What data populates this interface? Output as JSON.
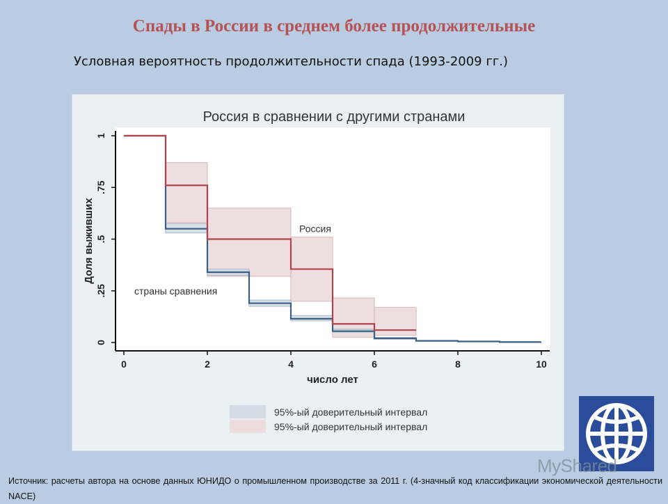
{
  "slide": {
    "title": "Спады в России в среднем более продолжительные",
    "subtitle": "Условная вероятность продолжительности спада (1993-2009 гг.)",
    "source": "Источник: расчеты автора на основе данных ЮНИДО о промышленном производстве за 2011 г. (4-значный код классификации экономической деятельности NACE)",
    "watermark": "MyShared",
    "logo_icon": "globe-icon",
    "colors": {
      "background": "#b9cce2",
      "title": "#b55256",
      "logo": "#2b4c9b"
    }
  },
  "chart_data": {
    "type": "line",
    "subtype": "step (Kaplan-Meier survival)",
    "title": "Россия в сравнении с другими странами",
    "xlabel": "число лет",
    "ylabel": "Доля выживших",
    "xlim": [
      0,
      10
    ],
    "ylim": [
      0,
      1
    ],
    "xticks": [
      0,
      2,
      4,
      6,
      8,
      10
    ],
    "yticks": [
      {
        "v": 0,
        "label": "0"
      },
      {
        "v": 0.25,
        "label": ".25"
      },
      {
        "v": 0.5,
        "label": ".5"
      },
      {
        "v": 0.75,
        "label": ".75"
      },
      {
        "v": 1,
        "label": "1"
      }
    ],
    "grid": false,
    "series": [
      {
        "name": "Россия",
        "color": "#b0434b",
        "ci_color": "#ecdcdd",
        "ci_edge": "#d9b9bc",
        "steps": [
          {
            "x0": 0,
            "x1": 1,
            "y": 1.0
          },
          {
            "x0": 1,
            "x1": 2,
            "y": 0.76,
            "lo": 0.58,
            "hi": 0.87
          },
          {
            "x0": 2,
            "x1": 4,
            "y": 0.5,
            "lo": 0.32,
            "hi": 0.65
          },
          {
            "x0": 4,
            "x1": 5,
            "y": 0.355,
            "lo": 0.2,
            "hi": 0.51
          },
          {
            "x0": 5,
            "x1": 6,
            "y": 0.09,
            "lo": 0.025,
            "hi": 0.215
          },
          {
            "x0": 6,
            "x1": 7,
            "y": 0.06,
            "lo": 0.035,
            "hi": 0.17
          }
        ],
        "label": {
          "text": "Россия",
          "x": 4.2,
          "y": 0.55
        }
      },
      {
        "name": "страны сравнения",
        "color": "#3a5f86",
        "ci_color": "#d4dde6",
        "ci_edge": "#a9b9c9",
        "steps": [
          {
            "x0": 0,
            "x1": 1,
            "y": 1.0
          },
          {
            "x0": 1,
            "x1": 2,
            "y": 0.55,
            "lo": 0.53,
            "hi": 0.575
          },
          {
            "x0": 2,
            "x1": 3,
            "y": 0.34,
            "lo": 0.325,
            "hi": 0.355
          },
          {
            "x0": 3,
            "x1": 4,
            "y": 0.19,
            "lo": 0.175,
            "hi": 0.205
          },
          {
            "x0": 4,
            "x1": 5,
            "y": 0.115,
            "lo": 0.105,
            "hi": 0.13
          },
          {
            "x0": 5,
            "x1": 6,
            "y": 0.055,
            "lo": 0.05,
            "hi": 0.065
          },
          {
            "x0": 6,
            "x1": 7,
            "y": 0.02,
            "lo": 0.016,
            "hi": 0.025
          },
          {
            "x0": 7,
            "x1": 8,
            "y": 0.008
          },
          {
            "x0": 8,
            "x1": 9,
            "y": 0.005
          },
          {
            "x0": 9,
            "x1": 10,
            "y": 0.002
          }
        ],
        "label": {
          "text": "страны сравнения",
          "x": 0.25,
          "y": 0.25
        }
      }
    ],
    "legend": {
      "position": "bottom",
      "entries": [
        {
          "label": "95%-ый доверительный интервал",
          "color": "#d4dde6"
        },
        {
          "label": "95%-ый доверительный интервал",
          "color": "#ecdcdd"
        }
      ]
    }
  }
}
